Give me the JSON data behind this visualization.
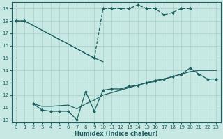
{
  "xlabel": "Humidex (Indice chaleur)",
  "xlim": [
    -0.5,
    23.5
  ],
  "ylim": [
    9.8,
    19.5
  ],
  "yticks": [
    10,
    11,
    12,
    13,
    14,
    15,
    16,
    17,
    18,
    19
  ],
  "xticks": [
    0,
    1,
    2,
    3,
    4,
    5,
    6,
    7,
    8,
    9,
    10,
    11,
    12,
    13,
    14,
    15,
    16,
    17,
    18,
    19,
    20,
    21,
    22,
    23
  ],
  "bg_color": "#c8e8e4",
  "grid_color": "#a8d0cc",
  "line_color": "#1a6060",
  "line1_x": [
    0,
    1,
    9,
    10,
    11,
    12,
    13,
    14,
    15,
    16,
    17,
    18,
    19,
    20
  ],
  "line1_y": [
    18,
    18,
    15,
    19,
    19,
    19,
    19,
    19.3,
    19,
    19,
    18.5,
    18.7,
    19,
    19
  ],
  "line2_x": [
    0,
    1,
    9,
    10
  ],
  "line2_y": [
    18,
    18,
    15,
    14.7
  ],
  "line3_x": [
    2,
    3,
    4,
    5,
    6,
    7,
    8,
    9,
    10,
    11,
    12,
    13,
    14,
    15,
    16,
    17,
    18,
    19,
    20,
    21,
    22,
    23
  ],
  "line3_y": [
    11.3,
    10.8,
    10.7,
    10.7,
    10.7,
    10.0,
    12.3,
    10.7,
    12.4,
    12.5,
    12.5,
    12.7,
    12.8,
    13.0,
    13.2,
    13.3,
    13.5,
    13.7,
    14.2,
    13.7,
    13.3,
    13.3
  ],
  "line4_x": [
    2,
    3,
    4,
    5,
    6,
    7,
    8,
    9,
    10,
    11,
    12,
    13,
    14,
    15,
    16,
    17,
    18,
    19,
    20,
    21,
    22,
    23
  ],
  "line4_y": [
    11.3,
    11.1,
    11.1,
    11.15,
    11.2,
    10.9,
    11.3,
    11.6,
    12.0,
    12.2,
    12.4,
    12.6,
    12.8,
    13.0,
    13.1,
    13.3,
    13.5,
    13.7,
    13.9,
    14.0,
    14.0,
    14.0
  ]
}
